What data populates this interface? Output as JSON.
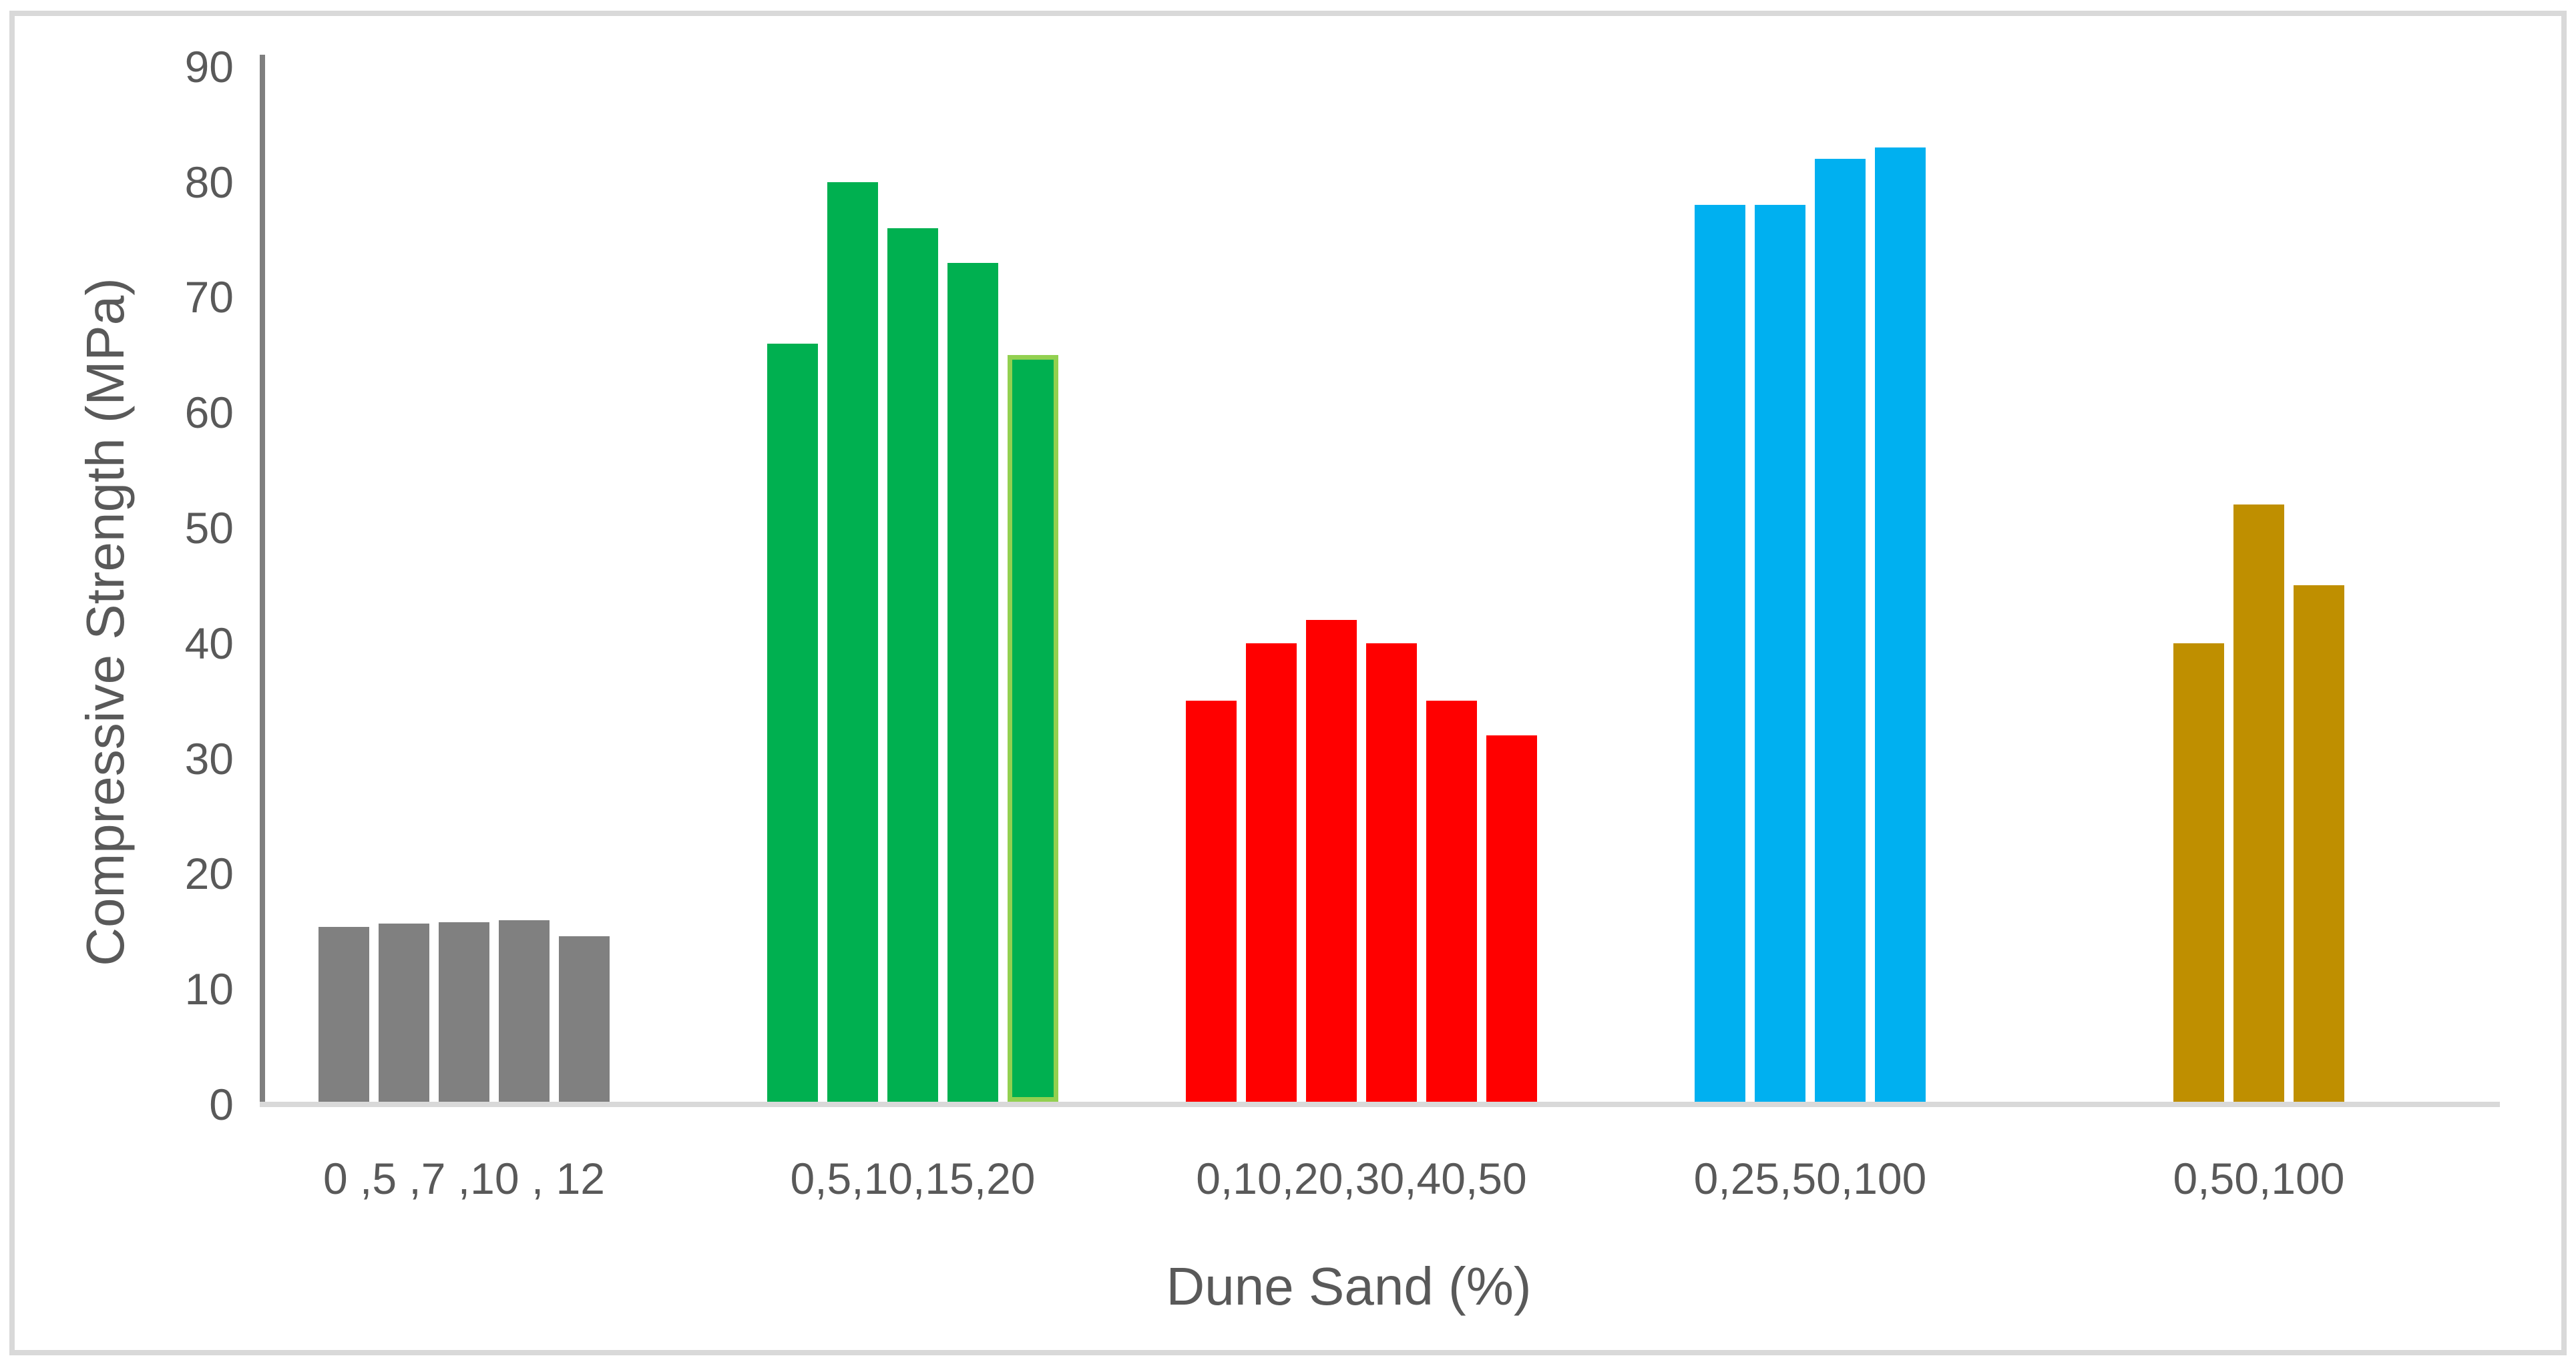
{
  "chart_data": {
    "type": "bar",
    "title": "",
    "xlabel": "Dune Sand (%)",
    "ylabel": "Compressive Strength (MPa)",
    "ylim": [
      0,
      90
    ],
    "ytick_step": 10,
    "yticks": [
      0,
      10,
      20,
      30,
      40,
      50,
      60,
      70,
      80,
      90
    ],
    "grid": false,
    "legend_position": "none",
    "groups": [
      {
        "label": "0 ,5 ,7 ,10 , 12",
        "color": "#808080",
        "values": [
          15.4,
          15.7,
          15.8,
          16.0,
          14.6
        ]
      },
      {
        "label": "0,5,10,15,20",
        "color": "#00B050",
        "values": [
          66,
          80,
          76,
          73,
          65
        ],
        "outlined_bar_index": 4,
        "outline_color": "#92D050"
      },
      {
        "label": "0,10,20,30,40,50",
        "color": "#FF0000",
        "values": [
          35,
          40,
          42,
          40,
          35,
          32
        ]
      },
      {
        "label": "0,25,50,100",
        "color": "#00B0F0",
        "values": [
          78,
          78,
          82,
          83
        ]
      },
      {
        "label": "0,50,100",
        "color": "#BF8F00",
        "values": [
          40,
          52,
          45
        ]
      }
    ],
    "colors": {
      "axis_text": "#595959",
      "y_axis_line": "#7F7F7F",
      "x_axis_line": "#D9D9D9",
      "chart_border": "#D9D9D9",
      "background": "#FFFFFF"
    }
  }
}
